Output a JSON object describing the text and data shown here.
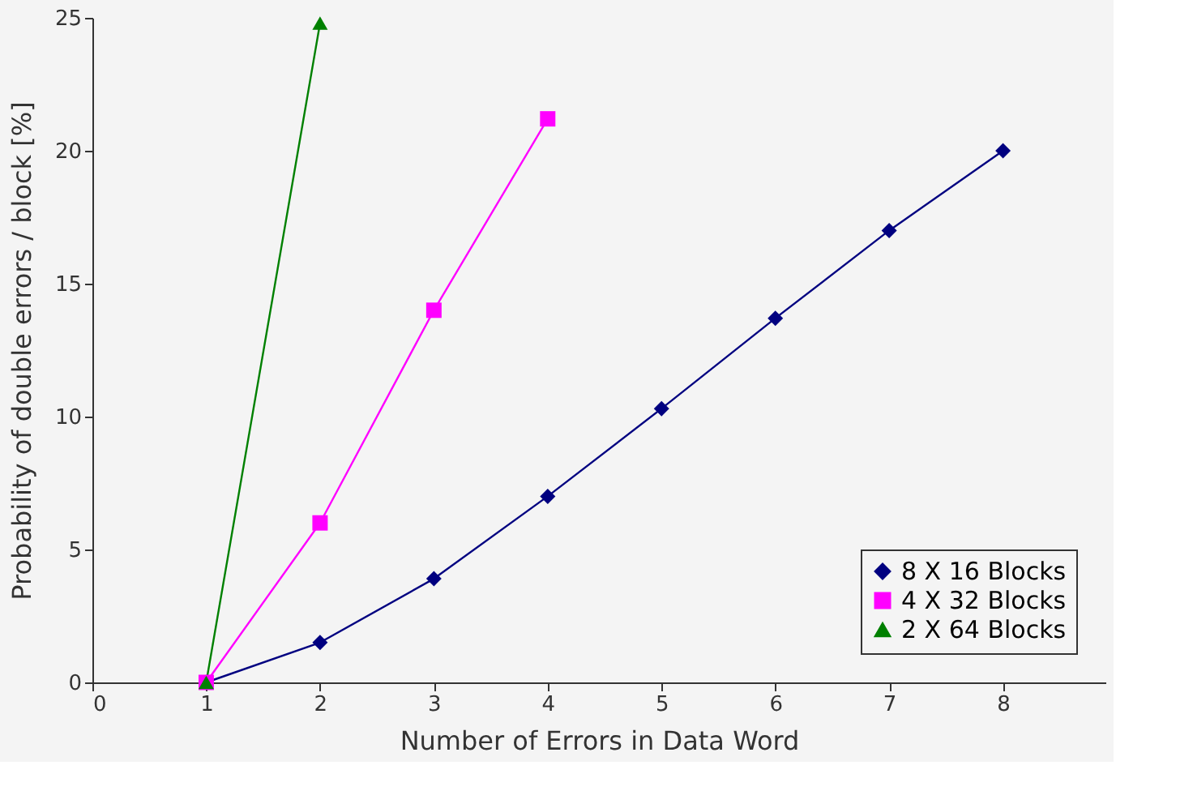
{
  "chart_data": {
    "type": "line",
    "xlabel": "Number of Errors in Data Word",
    "ylabel": "Probability of double errors / block [%]",
    "xlim": [
      0,
      8.9
    ],
    "xticks": [
      0,
      1,
      2,
      3,
      4,
      5,
      6,
      7,
      8
    ],
    "ylim": [
      0,
      25
    ],
    "yticks": [
      0,
      5,
      10,
      15,
      20,
      25
    ],
    "grid": false,
    "legend": "bottom right",
    "series": [
      {
        "name": "8 X 16 Blocks",
        "color": "#000080",
        "marker": "diamond",
        "x": [
          1,
          2,
          3,
          4,
          5,
          6,
          7,
          8
        ],
        "values": [
          0,
          1.5,
          3.9,
          7,
          10.3,
          13.7,
          17,
          20
        ]
      },
      {
        "name": "4 X 32 Blocks",
        "color": "#ff00ff",
        "marker": "square",
        "x": [
          1,
          2,
          3,
          4
        ],
        "values": [
          0,
          6,
          14,
          21.2
        ]
      },
      {
        "name": "2 X 64 Blocks",
        "color": "#008000",
        "marker": "triangle",
        "x": [
          1,
          2
        ],
        "values": [
          0,
          24.8
        ]
      }
    ]
  }
}
